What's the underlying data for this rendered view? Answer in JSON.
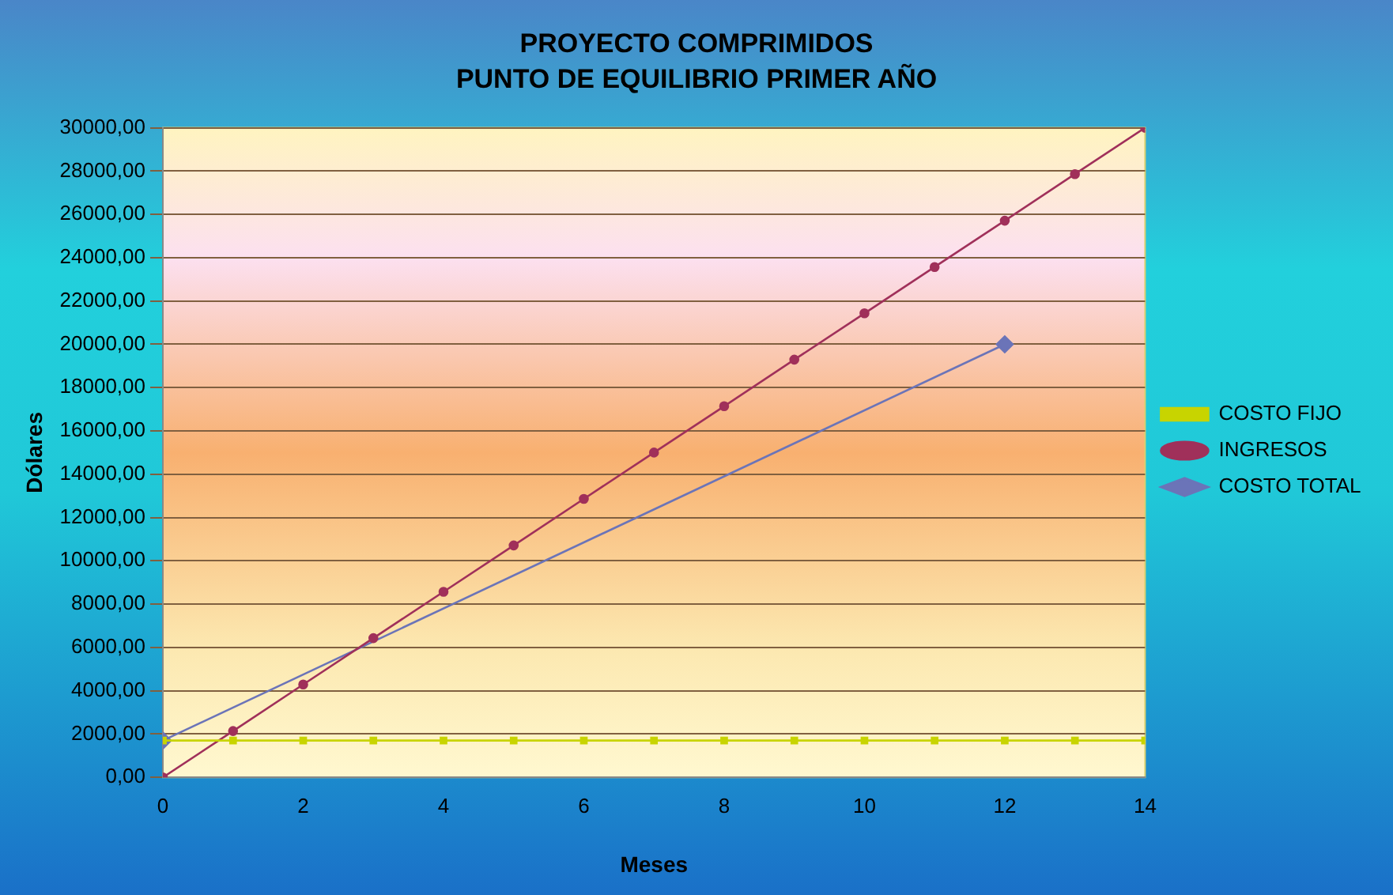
{
  "chart_data": {
    "type": "line",
    "title": "PROYECTO COMPRIMIDOS",
    "subtitle": "PUNTO DE EQUILIBRIO PRIMER AÑO",
    "xlabel": "Meses",
    "ylabel": "Dólares",
    "xlim": [
      0,
      14
    ],
    "xticks": [
      0,
      2,
      4,
      6,
      8,
      10,
      12,
      14
    ],
    "ylim": [
      0,
      30000
    ],
    "yticks": [
      {
        "value": 0,
        "label": "0,00"
      },
      {
        "value": 2000,
        "label": "2000,00"
      },
      {
        "value": 4000,
        "label": "4000,00"
      },
      {
        "value": 6000,
        "label": "6000,00"
      },
      {
        "value": 8000,
        "label": "8000,00"
      },
      {
        "value": 10000,
        "label": "10000,00"
      },
      {
        "value": 12000,
        "label": "12000,00"
      },
      {
        "value": 14000,
        "label": "14000,00"
      },
      {
        "value": 16000,
        "label": "16000,00"
      },
      {
        "value": 18000,
        "label": "18000,00"
      },
      {
        "value": 20000,
        "label": "20000,00"
      },
      {
        "value": 22000,
        "label": "22000,00"
      },
      {
        "value": 24000,
        "label": "24000,00"
      },
      {
        "value": 26000,
        "label": "26000,00"
      },
      {
        "value": 28000,
        "label": "28000,00"
      },
      {
        "value": 30000,
        "label": "30000,00"
      }
    ],
    "grid": "y",
    "legend": "right",
    "series": [
      {
        "name": "COSTO TOTAL",
        "color": "#6b74b8",
        "marker": "diamond",
        "x": [
          0,
          12
        ],
        "values": [
          1700,
          20000
        ]
      },
      {
        "name": "INGRESOS",
        "color": "#a0305a",
        "marker": "circle",
        "x": [
          0,
          1,
          2,
          3,
          4,
          5,
          6,
          7,
          8,
          9,
          10,
          11,
          12,
          13,
          14
        ],
        "values": [
          0,
          2140,
          4290,
          6430,
          8570,
          10710,
          12860,
          15000,
          17140,
          19290,
          21430,
          23570,
          25710,
          27860,
          30000
        ]
      },
      {
        "name": "COSTO FIJO",
        "color": "#c8d400",
        "marker": "square",
        "x": [
          0,
          1,
          2,
          3,
          4,
          5,
          6,
          7,
          8,
          9,
          10,
          11,
          12,
          13,
          14
        ],
        "values": [
          1700,
          1700,
          1700,
          1700,
          1700,
          1700,
          1700,
          1700,
          1700,
          1700,
          1700,
          1700,
          1700,
          1700,
          1700
        ]
      }
    ]
  }
}
